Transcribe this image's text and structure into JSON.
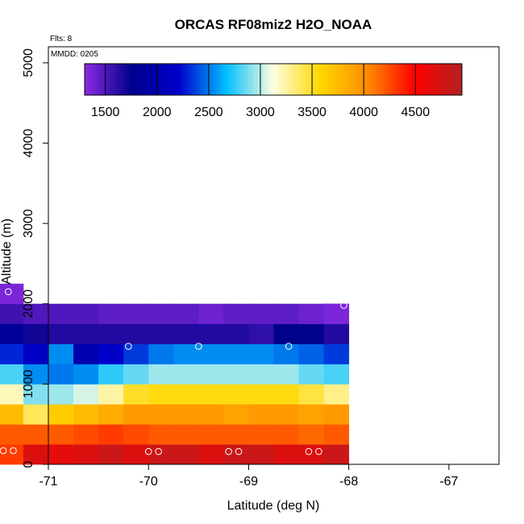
{
  "chart_data": {
    "type": "heatmap",
    "title": "ORCAS RF08miz2 H2O_NOAA",
    "annotations": {
      "flights": "Flts: 8",
      "date": "MMDD: 0205"
    },
    "xlabel": "Latitude (deg N)",
    "ylabel": "Altitude (m)",
    "xlim": [
      -71,
      -66.5
    ],
    "ylim": [
      0,
      5200
    ],
    "x_ticks": [
      -71,
      -70,
      -69,
      -68,
      -67
    ],
    "x_tick_labels": [
      "-71",
      "-70",
      "-69",
      "-68",
      "-67"
    ],
    "y_ticks": [
      0,
      1000,
      2000,
      3000,
      4000,
      5000
    ],
    "y_tick_labels": [
      "0",
      "1000",
      "2000",
      "3000",
      "4000",
      "5000"
    ],
    "grid": false,
    "colorbar": {
      "range": [
        1300,
        4950
      ],
      "ticks": [
        1500,
        2000,
        2500,
        3000,
        3500,
        4000,
        4500
      ],
      "tick_labels": [
        "1500",
        "2000",
        "2500",
        "3000",
        "3500",
        "4000",
        "4500"
      ],
      "colors": [
        "#8a2be2",
        "#00008b",
        "#0000cd",
        "#00bfff",
        "#ffffe0",
        "#ffd700",
        "#ff8c00",
        "#ff0000",
        "#b22222"
      ]
    },
    "cell_width": 0.25,
    "cell_height": 250,
    "columns_x": [
      -71.5,
      -71.25,
      -71.0,
      -70.75,
      -70.5,
      -70.25,
      -70.0,
      -69.75,
      -69.5,
      -69.25,
      -69.0,
      -68.75,
      -68.5,
      -68.25
    ],
    "rows": [
      {
        "y": 0,
        "x_start": -71.5,
        "values": [
          4300,
          4700,
          4650,
          4700,
          4800,
          4700,
          4800,
          4800,
          4700,
          4800,
          4800,
          4700,
          4700,
          4800
        ]
      },
      {
        "y": 250,
        "x_start": -71.5,
        "values": [
          4200,
          4200,
          4200,
          4250,
          4300,
          4250,
          4200,
          4200,
          4200,
          4200,
          4200,
          4200,
          4150,
          4200
        ]
      },
      {
        "y": 500,
        "x_start": -71.5,
        "values": [
          3750,
          3400,
          3650,
          3750,
          3850,
          3950,
          3950,
          3950,
          3950,
          3900,
          3950,
          3950,
          3900,
          3950
        ]
      },
      {
        "y": 750,
        "x_start": -71.5,
        "values": [
          3200,
          2900,
          2950,
          3050,
          3250,
          3500,
          3550,
          3550,
          3550,
          3550,
          3550,
          3550,
          3450,
          3300
        ]
      },
      {
        "y": 1000,
        "x_start": -71.5,
        "values": [
          2800,
          2550,
          2500,
          2550,
          2750,
          2850,
          2950,
          2950,
          2950,
          2950,
          2950,
          2950,
          2850,
          2800
        ]
      },
      {
        "y": 1250,
        "x_start": -71.5,
        "values": [
          2300,
          2150,
          2550,
          2000,
          2200,
          2350,
          2500,
          2550,
          2550,
          2550,
          2550,
          2500,
          2450,
          2350
        ]
      },
      {
        "y": 1500,
        "x_start": -71.5,
        "values": [
          1850,
          1700,
          1650,
          1650,
          1650,
          1650,
          1650,
          1650,
          1650,
          1650,
          1600,
          1750,
          1750,
          1650
        ]
      },
      {
        "y": 1750,
        "x_start": -71.5,
        "values": [
          1550,
          1500,
          1500,
          1500,
          1450,
          1450,
          1450,
          1450,
          1400,
          1450,
          1450,
          1450,
          1400,
          1350
        ]
      },
      {
        "y": 2000,
        "x_start": -71.5,
        "values": [
          1350
        ]
      }
    ],
    "extra_cells": [
      {
        "x": -68.25,
        "y": 1750,
        "width": 0.25,
        "value": 1350
      }
    ],
    "flight_points": [
      {
        "x": -71.45,
        "y": 170
      },
      {
        "x": -71.35,
        "y": 170
      },
      {
        "x": -70.0,
        "y": 160
      },
      {
        "x": -69.9,
        "y": 160
      },
      {
        "x": -69.2,
        "y": 160
      },
      {
        "x": -69.1,
        "y": 160
      },
      {
        "x": -68.4,
        "y": 160
      },
      {
        "x": -68.3,
        "y": 160
      },
      {
        "x": -71.4,
        "y": 2150
      },
      {
        "x": -70.2,
        "y": 1470
      },
      {
        "x": -69.5,
        "y": 1470
      },
      {
        "x": -68.6,
        "y": 1470
      },
      {
        "x": -68.05,
        "y": 1980
      }
    ]
  }
}
